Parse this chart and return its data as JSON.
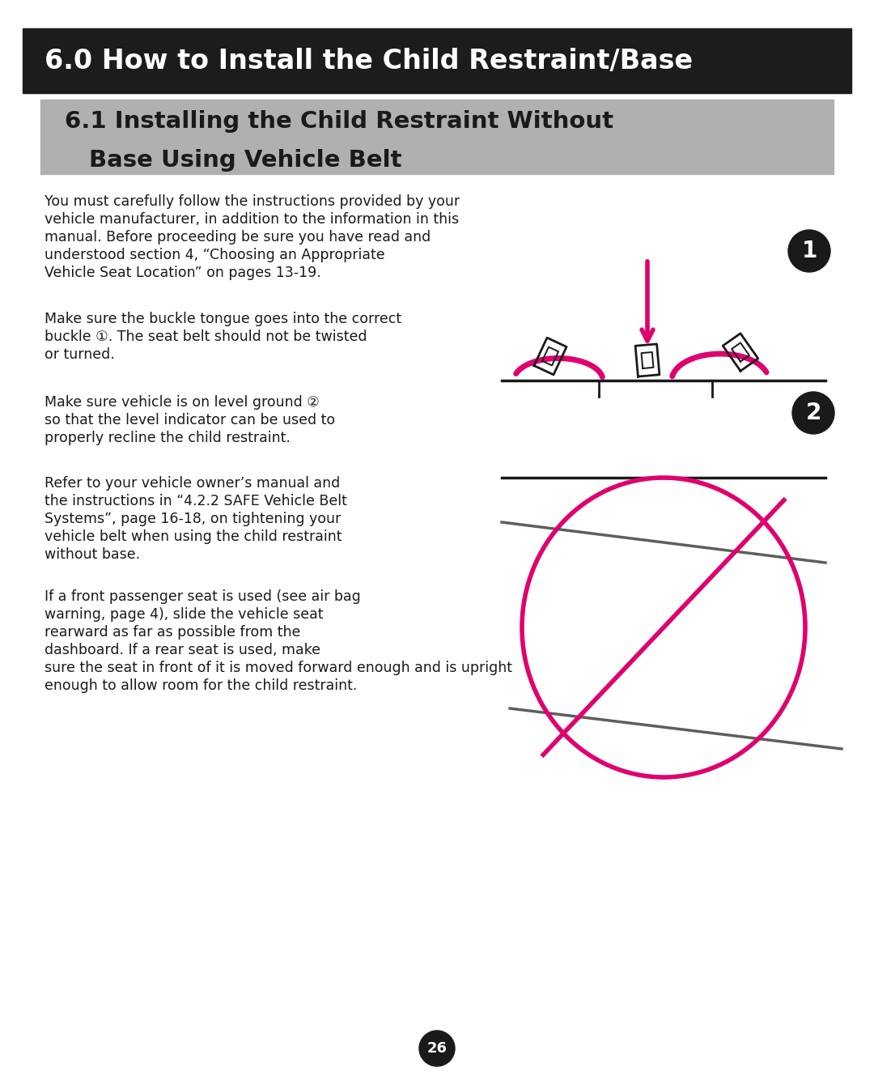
{
  "title1": "6.0 How to Install the Child Restraint/Base",
  "title2_line1": "6.1 Installing the Child Restraint Without",
  "title2_line2": "Base Using Vehicle Belt",
  "title1_bg": "#1c1c1c",
  "title2_bg": "#b0b0b0",
  "title1_color": "#ffffff",
  "title2_color": "#1a1a1a",
  "body_color": "#1a1a1a",
  "bg_color": "#ffffff",
  "page_number": "26",
  "accent_color": "#e0006e",
  "font_size_body": 12.5,
  "font_size_title1": 24,
  "font_size_title2": 21
}
